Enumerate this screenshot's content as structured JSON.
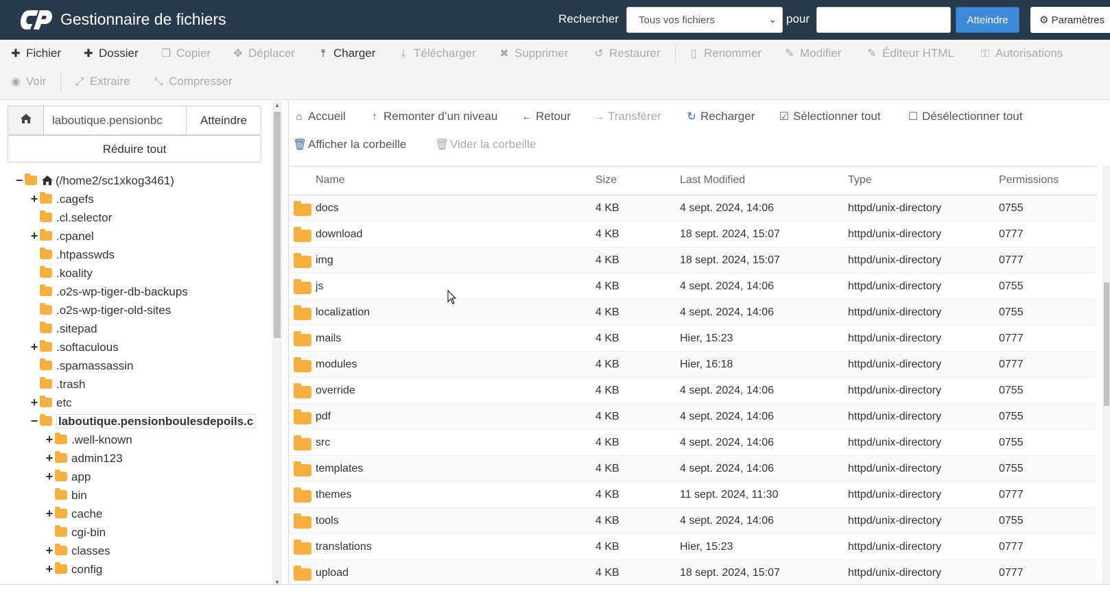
{
  "header": {
    "title": "Gestionnaire de fichiers",
    "search_label": "Rechercher",
    "search_scope": "Tous vos fichiers",
    "for_label": "pour",
    "search_value": "",
    "go_label": "Atteindre",
    "settings_label": "Paramètres"
  },
  "toolbar": {
    "file": "Fichier",
    "folder": "Dossier",
    "copy": "Copier",
    "move": "Déplacer",
    "upload": "Charger",
    "download": "Télécharger",
    "delete": "Supprimer",
    "restore": "Restaurer",
    "rename": "Renommer",
    "edit": "Modifier",
    "html_editor": "Éditeur HTML",
    "permissions": "Autorisations",
    "view": "Voir",
    "extract": "Extraire",
    "compress": "Compresser"
  },
  "left": {
    "path_value": "laboutique.pensionbc",
    "go_label": "Atteindre",
    "collapse_label": "Réduire tout",
    "tree": [
      {
        "label": "(/home2/sc1xkog3461)",
        "toggle": "−",
        "home": true
      },
      {
        "label": ".cagefs",
        "toggle": "+"
      },
      {
        "label": ".cl.selector",
        "toggle": ""
      },
      {
        "label": ".cpanel",
        "toggle": "+"
      },
      {
        "label": ".htpasswds",
        "toggle": ""
      },
      {
        "label": ".koality",
        "toggle": ""
      },
      {
        "label": ".o2s-wp-tiger-db-backups",
        "toggle": ""
      },
      {
        "label": ".o2s-wp-tiger-old-sites",
        "toggle": ""
      },
      {
        "label": ".sitepad",
        "toggle": ""
      },
      {
        "label": ".softaculous",
        "toggle": "+"
      },
      {
        "label": ".spamassassin",
        "toggle": ""
      },
      {
        "label": ".trash",
        "toggle": ""
      },
      {
        "label": "etc",
        "toggle": "+"
      },
      {
        "label": "laboutique.pensionboulesdepoils.c",
        "toggle": "−",
        "current": true
      },
      {
        "label": ".well-known",
        "toggle": "+"
      },
      {
        "label": "admin123",
        "toggle": "+"
      },
      {
        "label": "app",
        "toggle": "+"
      },
      {
        "label": "bin",
        "toggle": ""
      },
      {
        "label": "cache",
        "toggle": "+"
      },
      {
        "label": "cgi-bin",
        "toggle": ""
      },
      {
        "label": "classes",
        "toggle": "+"
      },
      {
        "label": "config",
        "toggle": "+"
      }
    ]
  },
  "nav": {
    "home": "Accueil",
    "up": "Remonter d’un niveau",
    "back": "Retour",
    "forward": "Transférer",
    "reload": "Recharger",
    "select_all": "Sélectionner tout",
    "deselect_all": "Désélectionner tout",
    "show_trash": "Afficher la corbeille",
    "empty_trash": "Vider la corbeille"
  },
  "table": {
    "columns": [
      "Name",
      "Size",
      "Last Modified",
      "Type",
      "Permissions"
    ],
    "rows": [
      {
        "name": "docs",
        "size": "4 KB",
        "modified": "4 sept. 2024, 14:06",
        "type": "httpd/unix-directory",
        "perms": "0755"
      },
      {
        "name": "download",
        "size": "4 KB",
        "modified": "18 sept. 2024, 15:07",
        "type": "httpd/unix-directory",
        "perms": "0777"
      },
      {
        "name": "img",
        "size": "4 KB",
        "modified": "18 sept. 2024, 15:07",
        "type": "httpd/unix-directory",
        "perms": "0777"
      },
      {
        "name": "js",
        "size": "4 KB",
        "modified": "4 sept. 2024, 14:06",
        "type": "httpd/unix-directory",
        "perms": "0755"
      },
      {
        "name": "localization",
        "size": "4 KB",
        "modified": "4 sept. 2024, 14:06",
        "type": "httpd/unix-directory",
        "perms": "0755"
      },
      {
        "name": "mails",
        "size": "4 KB",
        "modified": "Hier, 15:23",
        "type": "httpd/unix-directory",
        "perms": "0777"
      },
      {
        "name": "modules",
        "size": "4 KB",
        "modified": "Hier, 16:18",
        "type": "httpd/unix-directory",
        "perms": "0777"
      },
      {
        "name": "override",
        "size": "4 KB",
        "modified": "4 sept. 2024, 14:06",
        "type": "httpd/unix-directory",
        "perms": "0755"
      },
      {
        "name": "pdf",
        "size": "4 KB",
        "modified": "4 sept. 2024, 14:06",
        "type": "httpd/unix-directory",
        "perms": "0755"
      },
      {
        "name": "src",
        "size": "4 KB",
        "modified": "4 sept. 2024, 14:06",
        "type": "httpd/unix-directory",
        "perms": "0755"
      },
      {
        "name": "templates",
        "size": "4 KB",
        "modified": "4 sept. 2024, 14:06",
        "type": "httpd/unix-directory",
        "perms": "0755"
      },
      {
        "name": "themes",
        "size": "4 KB",
        "modified": "11 sept. 2024, 11:30",
        "type": "httpd/unix-directory",
        "perms": "0777"
      },
      {
        "name": "tools",
        "size": "4 KB",
        "modified": "4 sept. 2024, 14:06",
        "type": "httpd/unix-directory",
        "perms": "0755"
      },
      {
        "name": "translations",
        "size": "4 KB",
        "modified": "Hier, 15:23",
        "type": "httpd/unix-directory",
        "perms": "0777"
      },
      {
        "name": "upload",
        "size": "4 KB",
        "modified": "18 sept. 2024, 15:07",
        "type": "httpd/unix-directory",
        "perms": "0777"
      }
    ]
  },
  "colors": {
    "header_bg": "#293a4a",
    "accent": "#3f8ad8",
    "folder": "#f5b041"
  }
}
